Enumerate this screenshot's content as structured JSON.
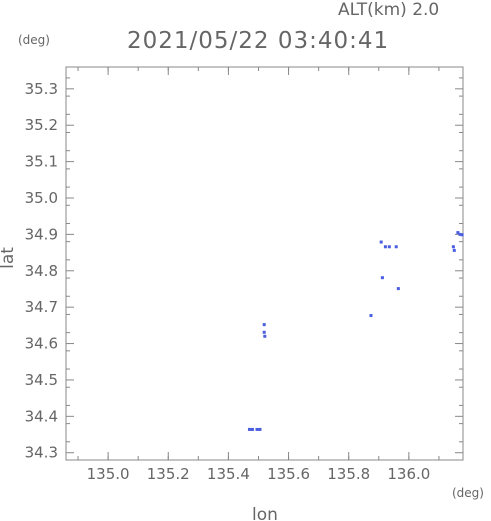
{
  "header": {
    "alt_label": "ALT(km) 2.0",
    "datetime": "2021/05/22 03:40:41"
  },
  "chart_data": {
    "type": "scatter",
    "title": "2021/05/22 03:40:41",
    "subtitle": "ALT(km) 2.0",
    "xlabel": "lon",
    "ylabel": "lat",
    "x_unit": "(deg)",
    "y_unit": "(deg)",
    "xlim": [
      134.86,
      136.18
    ],
    "ylim": [
      34.28,
      35.36
    ],
    "xticks": [
      135.0,
      135.2,
      135.4,
      135.6,
      135.8,
      136.0
    ],
    "xtick_labels": [
      "135.0",
      "135.2",
      "135.4",
      "135.6",
      "135.8",
      "136.0"
    ],
    "yticks": [
      34.3,
      34.4,
      34.5,
      34.6,
      34.7,
      34.8,
      34.9,
      35.0,
      35.1,
      35.2,
      35.3
    ],
    "ytick_labels": [
      "34.3",
      "34.4",
      "34.5",
      "34.6",
      "34.7",
      "34.8",
      "34.9",
      "35.0",
      "35.1",
      "35.2",
      "35.3"
    ],
    "grid": false,
    "marker_color": "#4a5ee0",
    "points": [
      {
        "x": 135.47,
        "y": 34.364
      },
      {
        "x": 135.48,
        "y": 34.364
      },
      {
        "x": 135.495,
        "y": 34.364
      },
      {
        "x": 135.505,
        "y": 34.364
      },
      {
        "x": 135.519,
        "y": 34.652
      },
      {
        "x": 135.519,
        "y": 34.631
      },
      {
        "x": 135.521,
        "y": 34.62
      },
      {
        "x": 135.874,
        "y": 34.677
      },
      {
        "x": 135.908,
        "y": 34.879
      },
      {
        "x": 135.912,
        "y": 34.781
      },
      {
        "x": 135.922,
        "y": 34.866
      },
      {
        "x": 135.935,
        "y": 34.866
      },
      {
        "x": 135.958,
        "y": 34.866
      },
      {
        "x": 135.965,
        "y": 34.751
      },
      {
        "x": 136.148,
        "y": 34.866
      },
      {
        "x": 136.151,
        "y": 34.856
      },
      {
        "x": 136.163,
        "y": 34.905
      },
      {
        "x": 136.17,
        "y": 34.9
      },
      {
        "x": 136.177,
        "y": 34.899
      }
    ]
  }
}
